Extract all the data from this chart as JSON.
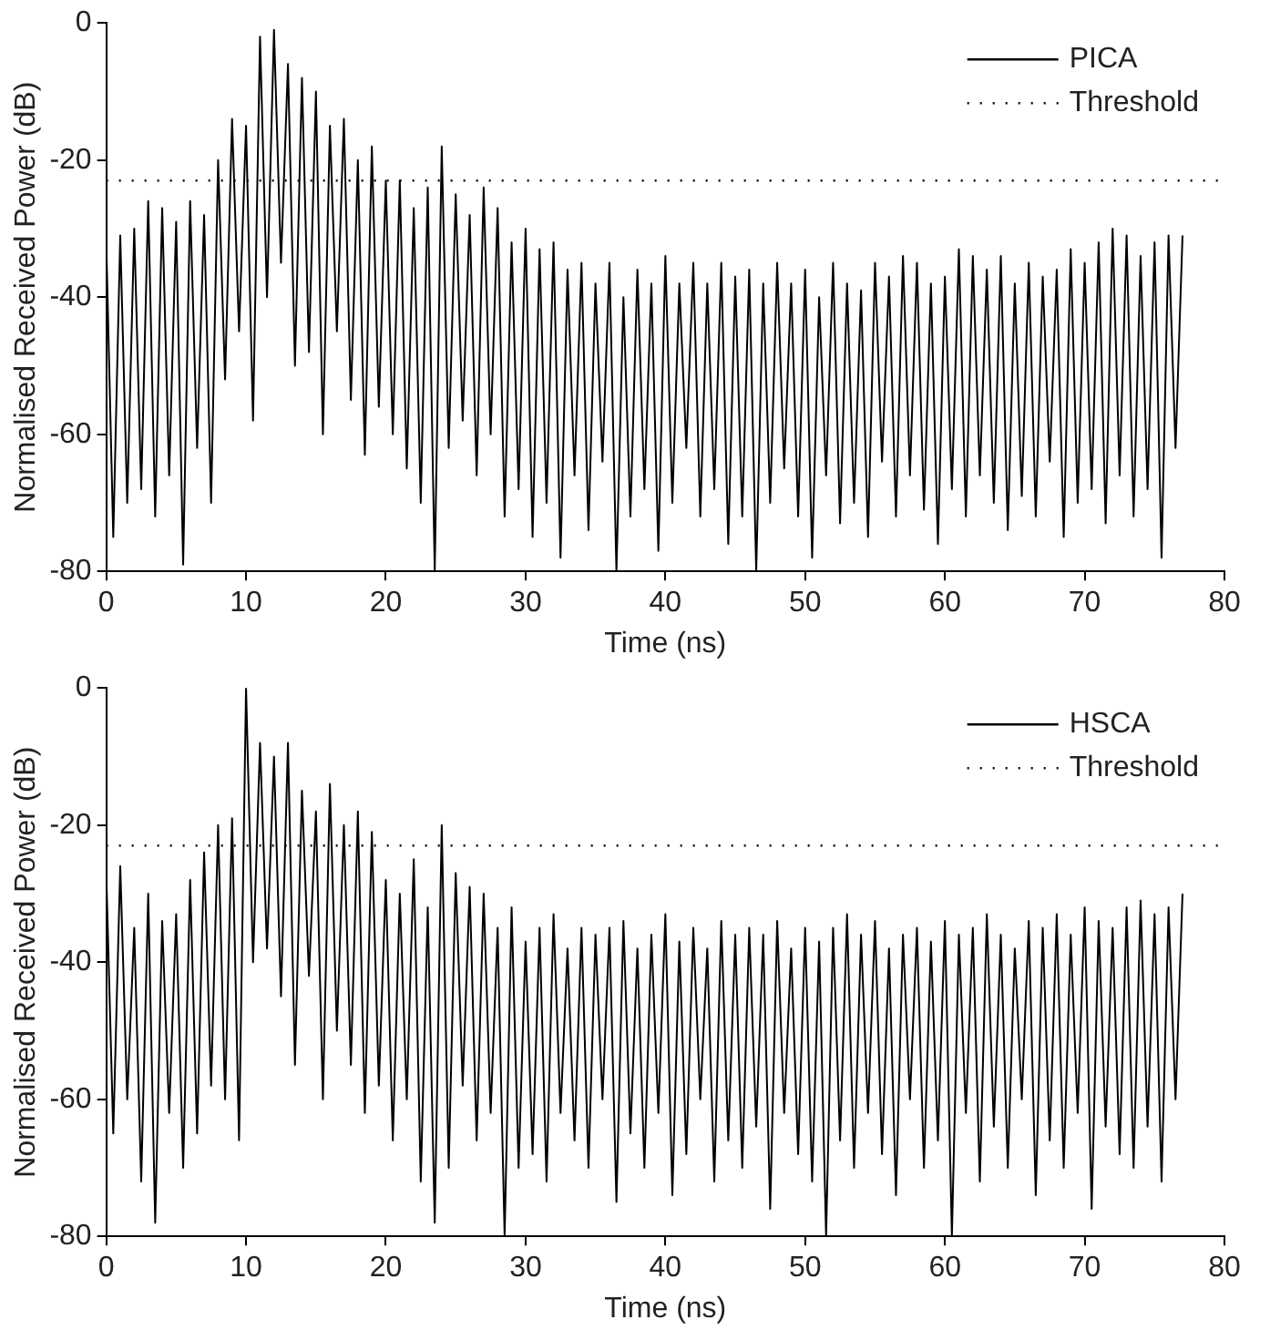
{
  "chart_data": [
    {
      "type": "line",
      "xlabel": "Time (ns)",
      "ylabel": "Normalised Received Power (dB)",
      "xlim": [
        0,
        80
      ],
      "xticks": [
        0,
        10,
        20,
        30,
        40,
        50,
        60,
        70,
        80
      ],
      "ylim": [
        -80,
        0
      ],
      "yticks": [
        -80,
        -60,
        -40,
        -20,
        0
      ],
      "grid": false,
      "legend": "top right",
      "x": [
        0,
        0.5,
        1,
        1.5,
        2,
        2.5,
        3,
        3.5,
        4,
        4.5,
        5,
        5.5,
        6,
        6.5,
        7,
        7.5,
        8,
        8.5,
        9,
        9.5,
        10,
        10.5,
        11,
        11.5,
        12,
        12.5,
        13,
        13.5,
        14,
        14.5,
        15,
        15.5,
        16,
        16.5,
        17,
        17.5,
        18,
        18.5,
        19,
        19.5,
        20,
        20.5,
        21,
        21.5,
        22,
        22.5,
        23,
        23.5,
        24,
        24.5,
        25,
        25.5,
        26,
        26.5,
        27,
        27.5,
        28,
        28.5,
        29,
        29.5,
        30,
        30.5,
        31,
        31.5,
        32,
        32.5,
        33,
        33.5,
        34,
        34.5,
        35,
        35.5,
        36,
        36.5,
        37,
        37.5,
        38,
        38.5,
        39,
        39.5,
        40,
        40.5,
        41,
        41.5,
        42,
        42.5,
        43,
        43.5,
        44,
        44.5,
        45,
        45.5,
        46,
        46.5,
        47,
        47.5,
        48,
        48.5,
        49,
        49.5,
        50,
        50.5,
        51,
        51.5,
        52,
        52.5,
        53,
        53.5,
        54,
        54.5,
        55,
        55.5,
        56,
        56.5,
        57,
        57.5,
        58,
        58.5,
        59,
        59.5,
        60,
        60.5,
        61,
        61.5,
        62,
        62.5,
        63,
        63.5,
        64,
        64.5,
        65,
        65.5,
        66,
        66.5,
        67,
        67.5,
        68,
        68.5,
        69,
        69.5,
        70,
        70.5,
        71,
        71.5,
        72,
        72.5,
        73,
        73.5,
        74,
        74.5,
        75,
        75.5,
        76,
        76.5,
        77
      ],
      "series": [
        {
          "name": "PICA",
          "color": "#000000",
          "line_style": "solid",
          "values": [
            -32,
            -75,
            -31,
            -70,
            -30,
            -68,
            -26,
            -72,
            -27,
            -66,
            -29,
            -79,
            -26,
            -62,
            -28,
            -70,
            -20,
            -52,
            -14,
            -45,
            -15,
            -58,
            -2,
            -40,
            -1,
            -35,
            -6,
            -50,
            -8,
            -48,
            -10,
            -60,
            -15,
            -45,
            -14,
            -55,
            -20,
            -63,
            -18,
            -56,
            -23,
            -60,
            -23,
            -65,
            -27,
            -70,
            -24,
            -80,
            -18,
            -62,
            -25,
            -58,
            -28,
            -66,
            -24,
            -60,
            -27,
            -72,
            -32,
            -68,
            -30,
            -75,
            -33,
            -70,
            -32,
            -78,
            -36,
            -66,
            -35,
            -74,
            -38,
            -64,
            -35,
            -80,
            -40,
            -72,
            -36,
            -68,
            -38,
            -77,
            -34,
            -70,
            -38,
            -62,
            -35,
            -72,
            -38,
            -68,
            -35,
            -76,
            -37,
            -72,
            -36,
            -80,
            -38,
            -70,
            -35,
            -65,
            -38,
            -72,
            -36,
            -78,
            -40,
            -66,
            -35,
            -73,
            -38,
            -70,
            -39,
            -75,
            -35,
            -64,
            -37,
            -72,
            -34,
            -66,
            -35,
            -71,
            -38,
            -76,
            -37,
            -68,
            -33,
            -72,
            -34,
            -66,
            -36,
            -70,
            -34,
            -74,
            -38,
            -69,
            -35,
            -72,
            -37,
            -64,
            -36,
            -75,
            -33,
            -70,
            -35,
            -68,
            -32,
            -73,
            -30,
            -66,
            -31,
            -72,
            -34,
            -68,
            -32,
            -78,
            -31,
            -62,
            -31
          ]
        }
      ],
      "ref_lines": [
        {
          "axis": "y",
          "value": -23,
          "label": "Threshold",
          "color": "#000000",
          "line_style": "dotted"
        }
      ]
    },
    {
      "type": "line",
      "xlabel": "Time (ns)",
      "ylabel": "Normalised Received Power (dB)",
      "xlim": [
        0,
        80
      ],
      "xticks": [
        0,
        10,
        20,
        30,
        40,
        50,
        60,
        70,
        80
      ],
      "ylim": [
        -80,
        0
      ],
      "yticks": [
        -80,
        -60,
        -40,
        -20,
        0
      ],
      "grid": false,
      "legend": "top right",
      "x": [
        0,
        0.5,
        1,
        1.5,
        2,
        2.5,
        3,
        3.5,
        4,
        4.5,
        5,
        5.5,
        6,
        6.5,
        7,
        7.5,
        8,
        8.5,
        9,
        9.5,
        10,
        10.5,
        11,
        11.5,
        12,
        12.5,
        13,
        13.5,
        14,
        14.5,
        15,
        15.5,
        16,
        16.5,
        17,
        17.5,
        18,
        18.5,
        19,
        19.5,
        20,
        20.5,
        21,
        21.5,
        22,
        22.5,
        23,
        23.5,
        24,
        24.5,
        25,
        25.5,
        26,
        26.5,
        27,
        27.5,
        28,
        28.5,
        29,
        29.5,
        30,
        30.5,
        31,
        31.5,
        32,
        32.5,
        33,
        33.5,
        34,
        34.5,
        35,
        35.5,
        36,
        36.5,
        37,
        37.5,
        38,
        38.5,
        39,
        39.5,
        40,
        40.5,
        41,
        41.5,
        42,
        42.5,
        43,
        43.5,
        44,
        44.5,
        45,
        45.5,
        46,
        46.5,
        47,
        47.5,
        48,
        48.5,
        49,
        49.5,
        50,
        50.5,
        51,
        51.5,
        52,
        52.5,
        53,
        53.5,
        54,
        54.5,
        55,
        55.5,
        56,
        56.5,
        57,
        57.5,
        58,
        58.5,
        59,
        59.5,
        60,
        60.5,
        61,
        61.5,
        62,
        62.5,
        63,
        63.5,
        64,
        64.5,
        65,
        65.5,
        66,
        66.5,
        67,
        67.5,
        68,
        68.5,
        69,
        69.5,
        70,
        70.5,
        71,
        71.5,
        72,
        72.5,
        73,
        73.5,
        74,
        74.5,
        75,
        75.5,
        76,
        76.5,
        77
      ],
      "series": [
        {
          "name": "HSCA",
          "color": "#000000",
          "line_style": "solid",
          "values": [
            -27,
            -65,
            -26,
            -60,
            -35,
            -72,
            -30,
            -78,
            -34,
            -62,
            -33,
            -70,
            -28,
            -65,
            -24,
            -58,
            -20,
            -60,
            -19,
            -66,
            0,
            -40,
            -8,
            -38,
            -10,
            -45,
            -8,
            -55,
            -15,
            -42,
            -18,
            -60,
            -14,
            -50,
            -20,
            -55,
            -18,
            -62,
            -21,
            -58,
            -28,
            -66,
            -30,
            -60,
            -25,
            -72,
            -32,
            -78,
            -20,
            -70,
            -27,
            -58,
            -29,
            -66,
            -30,
            -62,
            -35,
            -80,
            -32,
            -70,
            -37,
            -68,
            -35,
            -72,
            -33,
            -62,
            -38,
            -66,
            -35,
            -70,
            -36,
            -60,
            -35,
            -75,
            -34,
            -65,
            -38,
            -70,
            -36,
            -62,
            -33,
            -74,
            -37,
            -68,
            -35,
            -60,
            -38,
            -72,
            -34,
            -66,
            -36,
            -70,
            -35,
            -64,
            -36,
            -76,
            -34,
            -62,
            -38,
            -68,
            -35,
            -72,
            -37,
            -80,
            -35,
            -66,
            -33,
            -70,
            -36,
            -62,
            -34,
            -68,
            -38,
            -74,
            -36,
            -60,
            -35,
            -70,
            -37,
            -66,
            -34,
            -80,
            -36,
            -62,
            -35,
            -72,
            -33,
            -64,
            -36,
            -70,
            -38,
            -60,
            -34,
            -74,
            -35,
            -66,
            -33,
            -70,
            -36,
            -62,
            -32,
            -76,
            -34,
            -64,
            -35,
            -68,
            -32,
            -70,
            -31,
            -64,
            -33,
            -72,
            -32,
            -60,
            -30
          ]
        }
      ],
      "ref_lines": [
        {
          "axis": "y",
          "value": -23,
          "label": "Threshold",
          "color": "#000000",
          "line_style": "dotted"
        }
      ]
    }
  ]
}
